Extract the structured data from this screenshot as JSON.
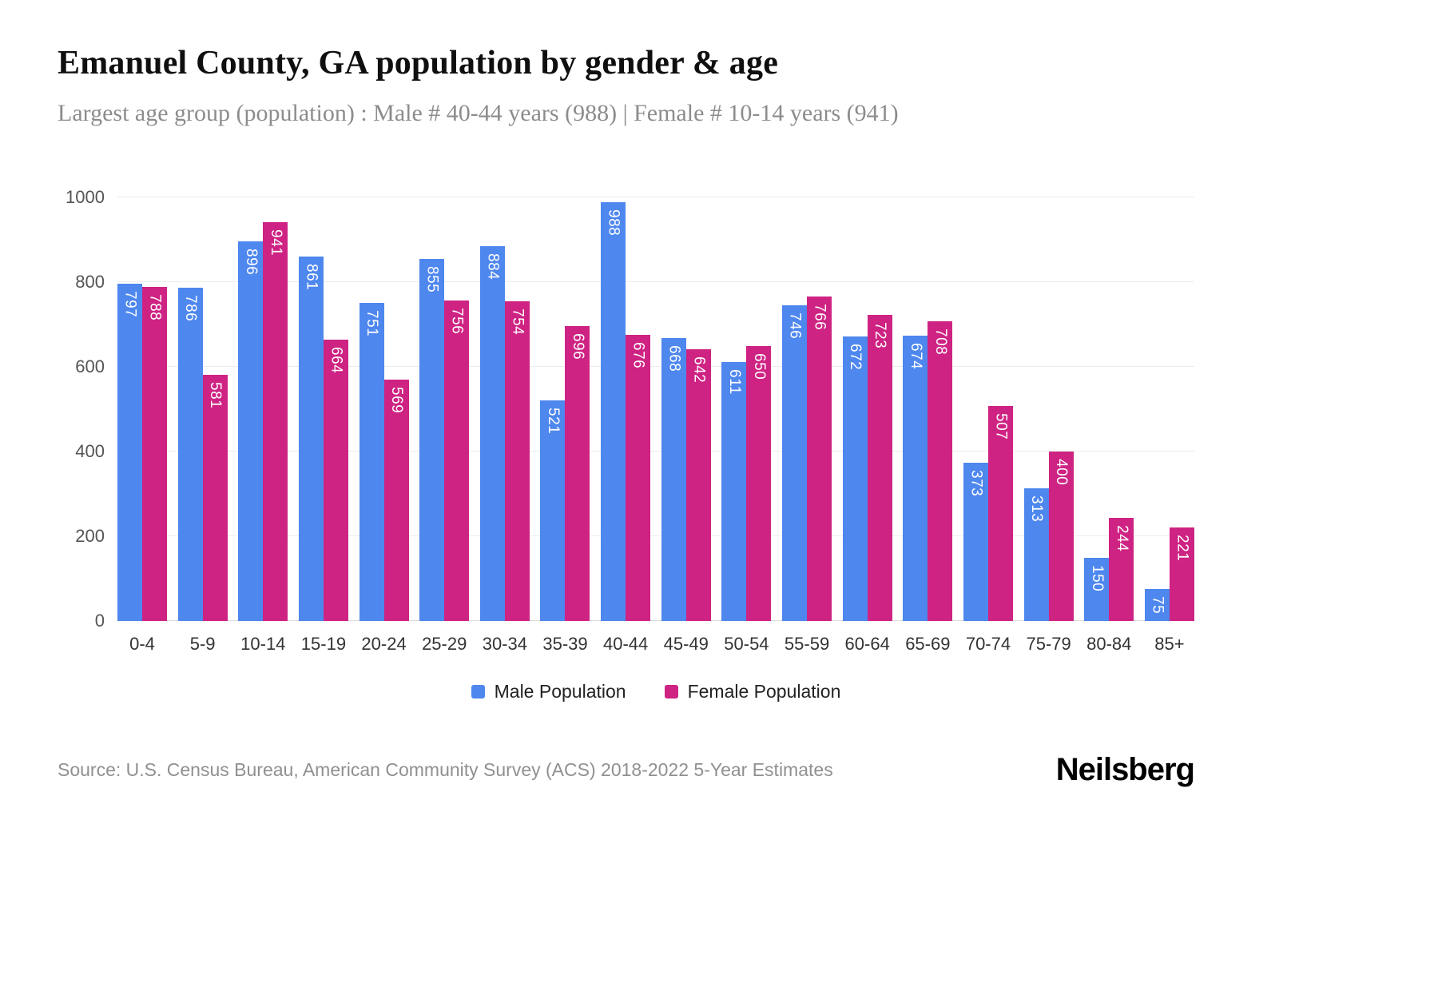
{
  "title": "Emanuel County, GA population by gender & age",
  "subtitle": "Largest age group (population) : Male # 40-44 years (988) | Female # 10-14 years (941)",
  "source": "Source: U.S. Census Bureau, American Community Survey (ACS) 2018-2022 5-Year Estimates",
  "brand": "Neilsberg",
  "chart_data": {
    "type": "bar",
    "categories": [
      "0-4",
      "5-9",
      "10-14",
      "15-19",
      "20-24",
      "25-29",
      "30-34",
      "35-39",
      "40-44",
      "45-49",
      "50-54",
      "55-59",
      "60-64",
      "65-69",
      "70-74",
      "75-79",
      "80-84",
      "85+"
    ],
    "series": [
      {
        "name": "Male Population",
        "color": "#4e87ee",
        "values": [
          797,
          786,
          896,
          861,
          751,
          855,
          884,
          521,
          988,
          668,
          611,
          746,
          672,
          674,
          373,
          313,
          150,
          75
        ]
      },
      {
        "name": "Female Population",
        "color": "#ce2383",
        "values": [
          788,
          581,
          941,
          664,
          569,
          756,
          754,
          696,
          676,
          642,
          650,
          766,
          723,
          708,
          507,
          400,
          244,
          221
        ]
      }
    ],
    "xlabel": "",
    "ylabel": "",
    "ylim": [
      0,
      1000
    ],
    "yticks": [
      0,
      200,
      400,
      600,
      800,
      1000
    ],
    "grid": true,
    "legend_position": "bottom"
  }
}
